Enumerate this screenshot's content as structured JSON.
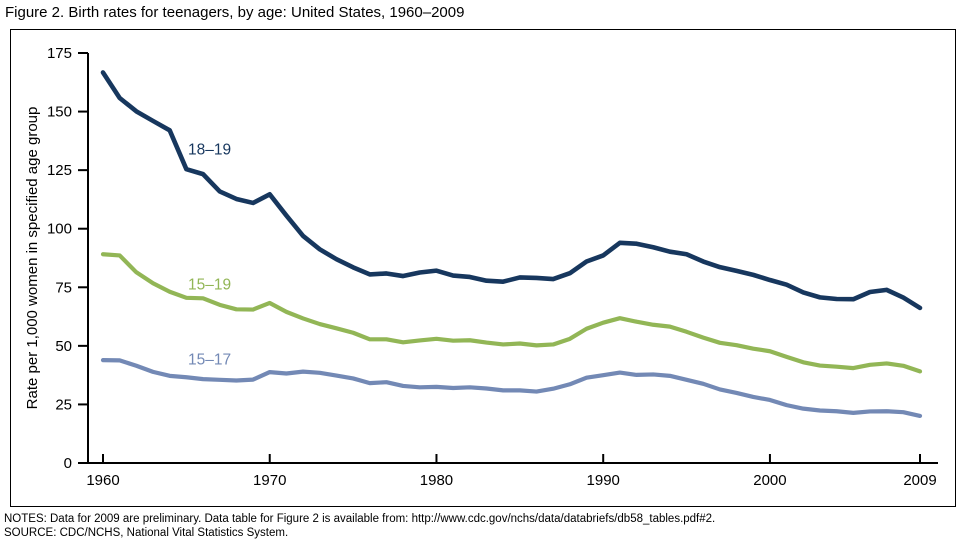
{
  "title": "Figure 2. Birth rates for teenagers, by age: United States, 1960–2009",
  "notes": {
    "line1": "NOTES: Data for 2009 are preliminary. Data table for Figure 2 is available from: http://www.cdc.gov/nchs/data/databriefs/db58_tables.pdf#2.",
    "line2": "SOURCE: CDC/NCHS, National Vital Statistics System."
  },
  "colors": {
    "axis": "#000000",
    "series_18_19": "#17375E",
    "series_15_19": "#92B656",
    "series_15_17": "#7389B5"
  },
  "chart_data": {
    "type": "line",
    "title": "Figure 2. Birth rates for teenagers, by age: United States, 1960–2009",
    "xlabel": "",
    "ylabel": "Rate per 1,000 women in specified age group",
    "xlim": [
      1960,
      2009
    ],
    "ylim": [
      0,
      175
    ],
    "xticks": [
      1960,
      1970,
      1980,
      1990,
      2000,
      2009
    ],
    "yticks": [
      0,
      25,
      50,
      75,
      100,
      125,
      150,
      175
    ],
    "grid": false,
    "legend": "inline-labels",
    "x": [
      1960,
      1961,
      1962,
      1963,
      1964,
      1965,
      1966,
      1967,
      1968,
      1969,
      1970,
      1971,
      1972,
      1973,
      1974,
      1975,
      1976,
      1977,
      1978,
      1979,
      1980,
      1981,
      1982,
      1983,
      1984,
      1985,
      1986,
      1987,
      1988,
      1989,
      1990,
      1991,
      1992,
      1993,
      1994,
      1995,
      1996,
      1997,
      1998,
      1999,
      2000,
      2001,
      2002,
      2003,
      2004,
      2005,
      2006,
      2007,
      2008,
      2009
    ],
    "series": [
      {
        "name": "18–19",
        "color": "#17375E",
        "stroke_width": 4.6,
        "values": [
          166.7,
          155.8,
          150.1,
          146.0,
          142.0,
          125.4,
          123.3,
          115.9,
          112.7,
          111.0,
          114.7,
          105.6,
          96.9,
          91.2,
          87.0,
          83.5,
          80.5,
          80.9,
          79.8,
          81.3,
          82.1,
          80.0,
          79.4,
          77.8,
          77.4,
          79.2,
          79.0,
          78.5,
          81.0,
          86.0,
          88.6,
          94.0,
          93.6,
          92.1,
          90.2,
          89.1,
          86.0,
          83.6,
          82.0,
          80.3,
          78.1,
          76.1,
          72.8,
          70.7,
          70.0,
          69.9,
          73.0,
          73.9,
          70.6,
          66.2
        ]
      },
      {
        "name": "15–19",
        "color": "#92B656",
        "stroke_width": 4.2,
        "values": [
          89.1,
          88.6,
          81.4,
          76.7,
          73.1,
          70.5,
          70.3,
          67.5,
          65.6,
          65.5,
          68.3,
          64.5,
          61.7,
          59.3,
          57.5,
          55.6,
          52.8,
          52.8,
          51.5,
          52.3,
          53.0,
          52.2,
          52.4,
          51.4,
          50.6,
          51.0,
          50.2,
          50.6,
          53.0,
          57.3,
          59.9,
          61.8,
          60.3,
          59.0,
          58.2,
          56.0,
          53.5,
          51.3,
          50.3,
          48.8,
          47.7,
          45.3,
          43.0,
          41.6,
          41.1,
          40.5,
          41.9,
          42.5,
          41.5,
          39.1
        ]
      },
      {
        "name": "15–17",
        "color": "#7389B5",
        "stroke_width": 4.2,
        "values": [
          43.9,
          43.8,
          41.5,
          38.9,
          37.2,
          36.6,
          35.8,
          35.5,
          35.2,
          35.6,
          38.8,
          38.2,
          39.0,
          38.5,
          37.3,
          36.1,
          34.1,
          34.5,
          32.9,
          32.3,
          32.5,
          32.0,
          32.3,
          31.8,
          31.0,
          31.0,
          30.5,
          31.7,
          33.6,
          36.4,
          37.5,
          38.6,
          37.6,
          37.8,
          37.2,
          35.5,
          33.8,
          31.4,
          29.9,
          28.2,
          26.9,
          24.7,
          23.2,
          22.4,
          22.1,
          21.4,
          22.0,
          22.1,
          21.7,
          20.1
        ]
      }
    ],
    "series_labels": [
      {
        "text": "18–19",
        "x": 1965.1,
        "y": 134.0,
        "color": "#17375E"
      },
      {
        "text": "15–19",
        "x": 1965.1,
        "y": 76.4,
        "color": "#92B656"
      },
      {
        "text": "15–17",
        "x": 1965.1,
        "y": 44.4,
        "color": "#7389B5"
      }
    ]
  }
}
